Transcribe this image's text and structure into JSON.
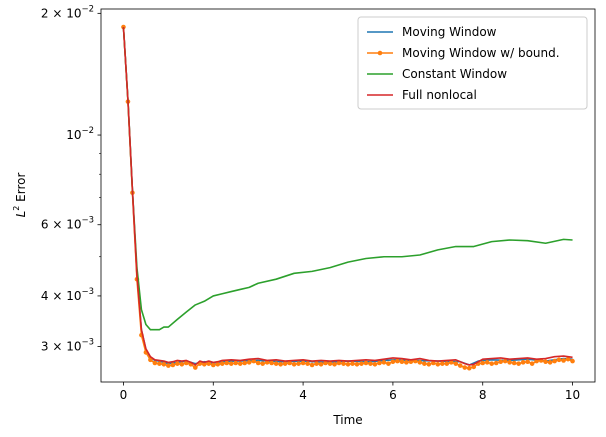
{
  "chart_data": {
    "type": "line",
    "xlabel": "Time",
    "ylabel_main": "L",
    "ylabel_sup": "2",
    "ylabel_rest": " Error",
    "yscale": "log",
    "xlim": [
      -0.5,
      10.5
    ],
    "ylim": [
      0.00245,
      0.0205
    ],
    "grid": false,
    "legend_placement": "top-right",
    "xticks": [
      {
        "value": 0,
        "label": "0"
      },
      {
        "value": 2,
        "label": "2"
      },
      {
        "value": 4,
        "label": "4"
      },
      {
        "value": 6,
        "label": "6"
      },
      {
        "value": 8,
        "label": "8"
      },
      {
        "value": 10,
        "label": "10"
      }
    ],
    "yticks": [
      {
        "value": 0.003,
        "base": "3 × 10",
        "exp": "−3"
      },
      {
        "value": 0.004,
        "base": "4 × 10",
        "exp": "−3"
      },
      {
        "value": 0.006,
        "base": "6 × 10",
        "exp": "−3"
      },
      {
        "value": 0.01,
        "base": "10",
        "exp": "−2"
      },
      {
        "value": 0.02,
        "base": "2 × 10",
        "exp": "−2"
      }
    ],
    "minor_yticks": [
      0.005,
      0.007,
      0.008,
      0.009
    ],
    "series": [
      {
        "name": "Moving Window",
        "color": "#1f77b4",
        "marker": false,
        "x": [
          0,
          0.1,
          0.2,
          0.3,
          0.4,
          0.5,
          0.6,
          0.7,
          0.8,
          0.9,
          1.0,
          1.2,
          1.4,
          1.6,
          1.8,
          2.0,
          2.2,
          2.5,
          3.0,
          3.5,
          4.0,
          4.5,
          5.0,
          5.5,
          6.0,
          6.5,
          7.0,
          7.5,
          7.7,
          7.9,
          8.2,
          8.6,
          9.0,
          9.4,
          9.8,
          10.0
        ],
        "y": [
          0.0185,
          0.0122,
          0.0073,
          0.0045,
          0.0033,
          0.00295,
          0.00282,
          0.00277,
          0.00276,
          0.00274,
          0.00272,
          0.00274,
          0.00276,
          0.00272,
          0.00275,
          0.00273,
          0.00275,
          0.00276,
          0.00277,
          0.00275,
          0.00276,
          0.00274,
          0.00276,
          0.00275,
          0.00278,
          0.00277,
          0.00276,
          0.00275,
          0.0027,
          0.00276,
          0.00278,
          0.00277,
          0.00279,
          0.00276,
          0.0028,
          0.00279
        ]
      },
      {
        "name": "Moving Window w/ bound.",
        "color": "#ff7f0e",
        "marker": true,
        "x": [
          0,
          0.1,
          0.2,
          0.3,
          0.4,
          0.5,
          0.6,
          0.7,
          0.8,
          0.9,
          1.0,
          1.1,
          1.2,
          1.3,
          1.4,
          1.5,
          1.6,
          1.7,
          1.8,
          1.9,
          2.0,
          2.1,
          2.2,
          2.3,
          2.4,
          2.5,
          2.6,
          2.7,
          2.8,
          2.9,
          3.0,
          3.1,
          3.2,
          3.3,
          3.4,
          3.5,
          3.6,
          3.7,
          3.8,
          3.9,
          4.0,
          4.1,
          4.2,
          4.3,
          4.4,
          4.5,
          4.6,
          4.7,
          4.8,
          4.9,
          5.0,
          5.1,
          5.2,
          5.3,
          5.4,
          5.5,
          5.6,
          5.7,
          5.8,
          5.9,
          6.0,
          6.1,
          6.2,
          6.3,
          6.4,
          6.5,
          6.6,
          6.7,
          6.8,
          6.9,
          7.0,
          7.1,
          7.2,
          7.3,
          7.4,
          7.5,
          7.6,
          7.7,
          7.8,
          7.9,
          8.0,
          8.1,
          8.2,
          8.3,
          8.4,
          8.5,
          8.6,
          8.7,
          8.8,
          8.9,
          9.0,
          9.1,
          9.2,
          9.3,
          9.4,
          9.5,
          9.6,
          9.7,
          9.8,
          9.9,
          10.0
        ],
        "y": [
          0.0185,
          0.0121,
          0.0072,
          0.0044,
          0.0032,
          0.0029,
          0.00278,
          0.00273,
          0.00272,
          0.00271,
          0.00269,
          0.0027,
          0.00272,
          0.00271,
          0.00273,
          0.00271,
          0.00266,
          0.00272,
          0.00271,
          0.00272,
          0.0027,
          0.00271,
          0.00272,
          0.00273,
          0.00272,
          0.00273,
          0.00272,
          0.00273,
          0.00274,
          0.00276,
          0.00273,
          0.00272,
          0.00274,
          0.00273,
          0.00272,
          0.00271,
          0.00272,
          0.00273,
          0.00271,
          0.00272,
          0.00273,
          0.00272,
          0.0027,
          0.00272,
          0.00271,
          0.00273,
          0.00272,
          0.00271,
          0.00273,
          0.00272,
          0.00271,
          0.00272,
          0.00271,
          0.00272,
          0.00273,
          0.00272,
          0.00271,
          0.00273,
          0.00274,
          0.00272,
          0.00275,
          0.00276,
          0.00275,
          0.00274,
          0.00275,
          0.00276,
          0.00274,
          0.00272,
          0.00271,
          0.00273,
          0.00271,
          0.00272,
          0.00272,
          0.00274,
          0.00272,
          0.00269,
          0.00266,
          0.00265,
          0.00267,
          0.00272,
          0.00273,
          0.00274,
          0.00272,
          0.00273,
          0.00275,
          0.00276,
          0.00274,
          0.00273,
          0.00272,
          0.00274,
          0.00275,
          0.00272,
          0.00276,
          0.00277,
          0.00275,
          0.00274,
          0.00276,
          0.00278,
          0.00277,
          0.00279,
          0.00276
        ]
      },
      {
        "name": "Constant Window",
        "color": "#2ca02c",
        "marker": false,
        "x": [
          0,
          0.1,
          0.2,
          0.3,
          0.4,
          0.5,
          0.6,
          0.7,
          0.8,
          0.9,
          1.0,
          1.2,
          1.4,
          1.6,
          1.8,
          2.0,
          2.2,
          2.4,
          2.6,
          2.8,
          3.0,
          3.4,
          3.8,
          4.2,
          4.6,
          5.0,
          5.4,
          5.8,
          6.2,
          6.6,
          7.0,
          7.4,
          7.8,
          8.2,
          8.6,
          9.0,
          9.4,
          9.8,
          10.0
        ],
        "y": [
          0.0185,
          0.0122,
          0.0073,
          0.0047,
          0.0037,
          0.0034,
          0.0033,
          0.0033,
          0.0033,
          0.00335,
          0.00335,
          0.0035,
          0.00365,
          0.0038,
          0.00388,
          0.004,
          0.00405,
          0.0041,
          0.00415,
          0.0042,
          0.0043,
          0.0044,
          0.00455,
          0.0046,
          0.0047,
          0.00485,
          0.00495,
          0.005,
          0.005,
          0.00505,
          0.0052,
          0.0053,
          0.0053,
          0.00545,
          0.0055,
          0.00548,
          0.0054,
          0.00552,
          0.0055
        ]
      },
      {
        "name": "Full nonlocal",
        "color": "#d62728",
        "marker": false,
        "x": [
          0,
          0.1,
          0.2,
          0.3,
          0.4,
          0.5,
          0.6,
          0.7,
          0.8,
          0.9,
          1.0,
          1.1,
          1.2,
          1.3,
          1.4,
          1.5,
          1.6,
          1.7,
          1.8,
          1.9,
          2.0,
          2.1,
          2.2,
          2.4,
          2.6,
          2.8,
          3.0,
          3.2,
          3.4,
          3.6,
          3.8,
          4.0,
          4.2,
          4.4,
          4.6,
          4.8,
          5.0,
          5.2,
          5.4,
          5.6,
          5.8,
          6.0,
          6.2,
          6.4,
          6.6,
          6.8,
          7.0,
          7.2,
          7.4,
          7.6,
          7.7,
          7.8,
          8.0,
          8.2,
          8.4,
          8.6,
          8.8,
          9.0,
          9.2,
          9.4,
          9.6,
          9.8,
          10.0
        ],
        "y": [
          0.0185,
          0.0122,
          0.0073,
          0.0045,
          0.0033,
          0.00296,
          0.00283,
          0.00278,
          0.00277,
          0.00276,
          0.00274,
          0.00275,
          0.00277,
          0.00276,
          0.00277,
          0.00274,
          0.0027,
          0.00276,
          0.00274,
          0.00276,
          0.00274,
          0.00275,
          0.00277,
          0.00278,
          0.00277,
          0.00279,
          0.0028,
          0.00277,
          0.00278,
          0.00276,
          0.00277,
          0.00278,
          0.00276,
          0.00277,
          0.00276,
          0.00277,
          0.00276,
          0.00277,
          0.00278,
          0.00277,
          0.00279,
          0.00281,
          0.0028,
          0.00278,
          0.0028,
          0.00277,
          0.00276,
          0.00277,
          0.00278,
          0.00272,
          0.0027,
          0.00271,
          0.00279,
          0.0028,
          0.00281,
          0.00279,
          0.0028,
          0.00281,
          0.00279,
          0.0028,
          0.00283,
          0.00284,
          0.00282
        ]
      }
    ]
  }
}
